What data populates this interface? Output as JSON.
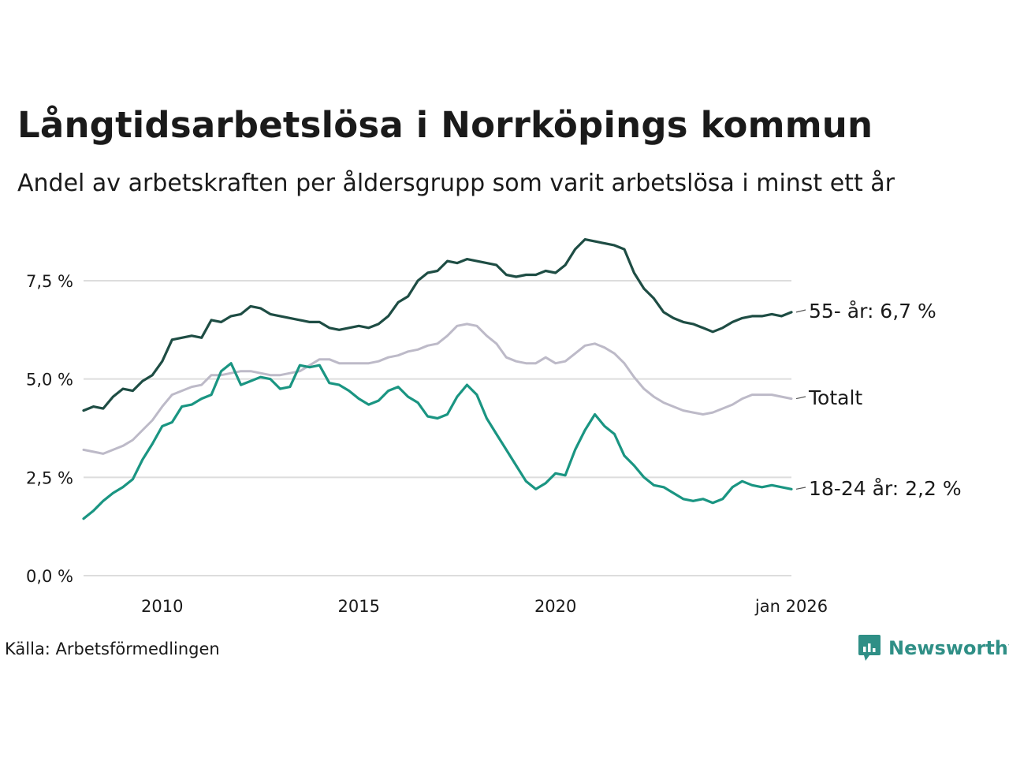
{
  "title": "Långtidsarbetslösa i Norrköpings kommun",
  "subtitle": "Andel av arbetskraften per åldersgrupp som varit arbetslösa i minst ett år",
  "source": "Källa: Arbetsförmedlingen",
  "brand": "Newsworthy",
  "colors": {
    "older": "#1e4d44",
    "total": "#bdbac8",
    "young": "#1a9582",
    "grid": "#dddddd",
    "brand": "#2f8f86"
  },
  "chart_data": {
    "type": "line",
    "title": "Långtidsarbetslösa i Norrköpings kommun",
    "xlabel": "",
    "ylabel": "",
    "xlim": [
      2008.0,
      2026.0
    ],
    "ylim": [
      0,
      8.8
    ],
    "grid": true,
    "y_ticks": [
      {
        "value": 0,
        "label": "0,0 %"
      },
      {
        "value": 2.5,
        "label": "2,5 %"
      },
      {
        "value": 5,
        "label": "5,0 %"
      },
      {
        "value": 7.5,
        "label": "7,5 %"
      }
    ],
    "x_ticks": [
      {
        "value": 2010,
        "label": "2010"
      },
      {
        "value": 2015,
        "label": "2015"
      },
      {
        "value": 2020,
        "label": "2020"
      },
      {
        "value": 2026.0,
        "label": "jan 2026"
      }
    ],
    "series": [
      {
        "name": "55- år",
        "key": "older",
        "end_label": "55- år: 6,7 %",
        "x": [
          2008.0,
          2008.25,
          2008.5,
          2008.75,
          2009.0,
          2009.25,
          2009.5,
          2009.75,
          2010.0,
          2010.25,
          2010.5,
          2010.75,
          2011.0,
          2011.25,
          2011.5,
          2011.75,
          2012.0,
          2012.25,
          2012.5,
          2012.75,
          2013.0,
          2013.25,
          2013.5,
          2013.75,
          2014.0,
          2014.25,
          2014.5,
          2014.75,
          2015.0,
          2015.25,
          2015.5,
          2015.75,
          2016.0,
          2016.25,
          2016.5,
          2016.75,
          2017.0,
          2017.25,
          2017.5,
          2017.75,
          2018.0,
          2018.25,
          2018.5,
          2018.75,
          2019.0,
          2019.25,
          2019.5,
          2019.75,
          2020.0,
          2020.25,
          2020.5,
          2020.75,
          2021.0,
          2021.25,
          2021.5,
          2021.75,
          2022.0,
          2022.25,
          2022.5,
          2022.75,
          2023.0,
          2023.25,
          2023.5,
          2023.75,
          2024.0,
          2024.25,
          2024.5,
          2024.75,
          2025.0,
          2025.25,
          2025.5,
          2025.75,
          2026.0
        ],
        "y": [
          4.2,
          4.3,
          4.25,
          4.55,
          4.75,
          4.7,
          4.95,
          5.1,
          5.45,
          6.0,
          6.05,
          6.1,
          6.05,
          6.5,
          6.45,
          6.6,
          6.65,
          6.85,
          6.8,
          6.65,
          6.6,
          6.55,
          6.5,
          6.45,
          6.45,
          6.3,
          6.25,
          6.3,
          6.35,
          6.3,
          6.4,
          6.6,
          6.95,
          7.1,
          7.5,
          7.7,
          7.75,
          8.0,
          7.95,
          8.05,
          8.0,
          7.95,
          7.9,
          7.65,
          7.6,
          7.65,
          7.65,
          7.75,
          7.7,
          7.9,
          8.3,
          8.55,
          8.5,
          8.45,
          8.4,
          8.3,
          7.7,
          7.3,
          7.05,
          6.7,
          6.55,
          6.45,
          6.4,
          6.3,
          6.2,
          6.3,
          6.45,
          6.55,
          6.6,
          6.6,
          6.65,
          6.6,
          6.7
        ]
      },
      {
        "name": "Totalt",
        "key": "total",
        "end_label": "Totalt",
        "x": [
          2008.0,
          2008.25,
          2008.5,
          2008.75,
          2009.0,
          2009.25,
          2009.5,
          2009.75,
          2010.0,
          2010.25,
          2010.5,
          2010.75,
          2011.0,
          2011.25,
          2011.5,
          2011.75,
          2012.0,
          2012.25,
          2012.5,
          2012.75,
          2013.0,
          2013.25,
          2013.5,
          2013.75,
          2014.0,
          2014.25,
          2014.5,
          2014.75,
          2015.0,
          2015.25,
          2015.5,
          2015.75,
          2016.0,
          2016.25,
          2016.5,
          2016.75,
          2017.0,
          2017.25,
          2017.5,
          2017.75,
          2018.0,
          2018.25,
          2018.5,
          2018.75,
          2019.0,
          2019.25,
          2019.5,
          2019.75,
          2020.0,
          2020.25,
          2020.5,
          2020.75,
          2021.0,
          2021.25,
          2021.5,
          2021.75,
          2022.0,
          2022.25,
          2022.5,
          2022.75,
          2023.0,
          2023.25,
          2023.5,
          2023.75,
          2024.0,
          2024.25,
          2024.5,
          2024.75,
          2025.0,
          2025.25,
          2025.5,
          2025.75,
          2026.0
        ],
        "y": [
          3.2,
          3.15,
          3.1,
          3.2,
          3.3,
          3.45,
          3.7,
          3.95,
          4.3,
          4.6,
          4.7,
          4.8,
          4.85,
          5.1,
          5.1,
          5.15,
          5.2,
          5.2,
          5.15,
          5.1,
          5.1,
          5.15,
          5.2,
          5.35,
          5.5,
          5.5,
          5.4,
          5.4,
          5.4,
          5.4,
          5.45,
          5.55,
          5.6,
          5.7,
          5.75,
          5.85,
          5.9,
          6.1,
          6.35,
          6.4,
          6.35,
          6.1,
          5.9,
          5.55,
          5.45,
          5.4,
          5.4,
          5.55,
          5.4,
          5.45,
          5.65,
          5.85,
          5.9,
          5.8,
          5.65,
          5.4,
          5.05,
          4.75,
          4.55,
          4.4,
          4.3,
          4.2,
          4.15,
          4.1,
          4.15,
          4.25,
          4.35,
          4.5,
          4.6,
          4.6,
          4.6,
          4.55,
          4.5
        ]
      },
      {
        "name": "18-24 år",
        "key": "young",
        "end_label": "18-24 år: 2,2 %",
        "x": [
          2008.0,
          2008.25,
          2008.5,
          2008.75,
          2009.0,
          2009.25,
          2009.5,
          2009.75,
          2010.0,
          2010.25,
          2010.5,
          2010.75,
          2011.0,
          2011.25,
          2011.5,
          2011.75,
          2012.0,
          2012.25,
          2012.5,
          2012.75,
          2013.0,
          2013.25,
          2013.5,
          2013.75,
          2014.0,
          2014.25,
          2014.5,
          2014.75,
          2015.0,
          2015.25,
          2015.5,
          2015.75,
          2016.0,
          2016.25,
          2016.5,
          2016.75,
          2017.0,
          2017.25,
          2017.5,
          2017.75,
          2018.0,
          2018.25,
          2018.5,
          2018.75,
          2019.0,
          2019.25,
          2019.5,
          2019.75,
          2020.0,
          2020.25,
          2020.5,
          2020.75,
          2021.0,
          2021.25,
          2021.5,
          2021.75,
          2022.0,
          2022.25,
          2022.5,
          2022.75,
          2023.0,
          2023.25,
          2023.5,
          2023.75,
          2024.0,
          2024.25,
          2024.5,
          2024.75,
          2025.0,
          2025.25,
          2025.5,
          2025.75,
          2026.0
        ],
        "y": [
          1.45,
          1.65,
          1.9,
          2.1,
          2.25,
          2.45,
          2.95,
          3.35,
          3.8,
          3.9,
          4.3,
          4.35,
          4.5,
          4.6,
          5.2,
          5.4,
          4.85,
          4.95,
          5.05,
          5.0,
          4.75,
          4.8,
          5.35,
          5.3,
          5.35,
          4.9,
          4.85,
          4.7,
          4.5,
          4.35,
          4.45,
          4.7,
          4.8,
          4.55,
          4.4,
          4.05,
          4.0,
          4.1,
          4.55,
          4.85,
          4.6,
          4.0,
          3.6,
          3.2,
          2.8,
          2.4,
          2.2,
          2.35,
          2.6,
          2.55,
          3.2,
          3.7,
          4.1,
          3.8,
          3.6,
          3.05,
          2.8,
          2.5,
          2.3,
          2.25,
          2.1,
          1.95,
          1.9,
          1.95,
          1.85,
          1.95,
          2.25,
          2.4,
          2.3,
          2.25,
          2.3,
          2.25,
          2.2
        ]
      }
    ]
  }
}
